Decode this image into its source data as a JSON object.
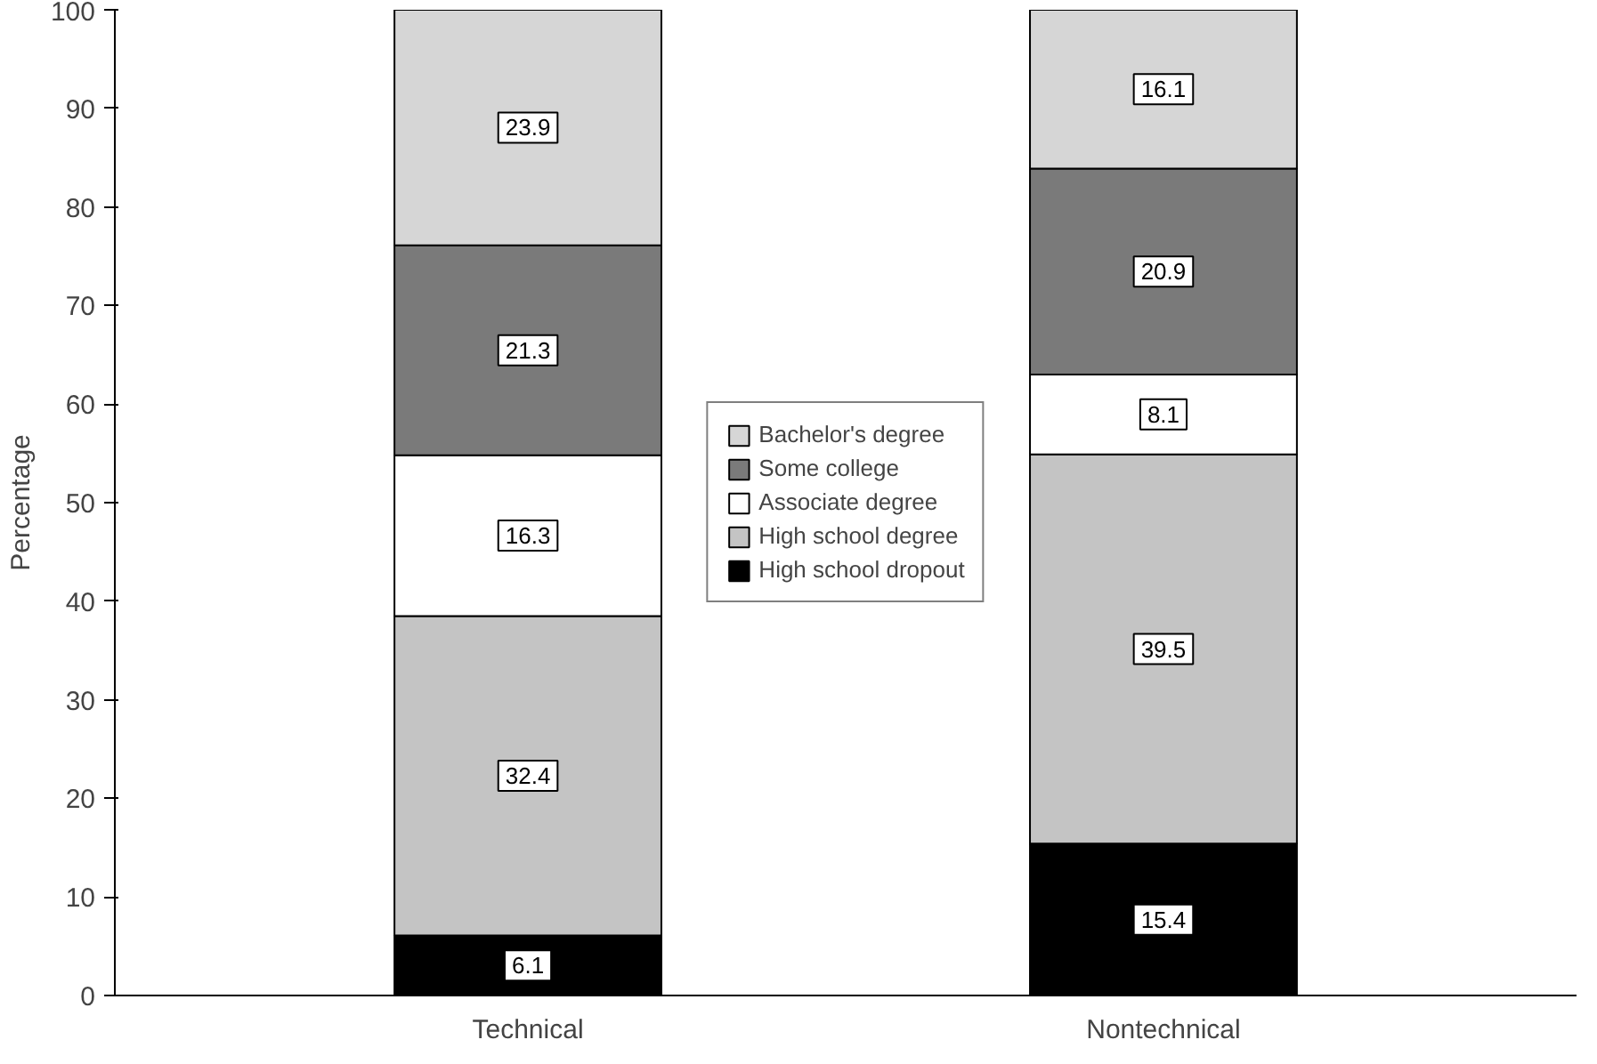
{
  "chart_data": {
    "type": "bar",
    "stacked": true,
    "ylabel": "Percentage",
    "categories": [
      "Technical",
      "Nontechnical"
    ],
    "series": [
      {
        "name": "High school dropout",
        "color": "#000000",
        "values": [
          6.1,
          15.4
        ]
      },
      {
        "name": "High school degree",
        "color": "#c4c4c4",
        "values": [
          32.4,
          39.5
        ]
      },
      {
        "name": "Associate degree",
        "color": "#ffffff",
        "values": [
          16.3,
          8.1
        ]
      },
      {
        "name": "Some college",
        "color": "#7a7a7a",
        "values": [
          21.3,
          20.9
        ]
      },
      {
        "name": "Bachelor's degree",
        "color": "#d6d6d6",
        "values": [
          23.9,
          16.1
        ]
      }
    ],
    "ylim": [
      0,
      100
    ],
    "yticks": [
      0,
      10,
      20,
      30,
      40,
      50,
      60,
      70,
      80,
      90,
      100
    ],
    "grid": false,
    "legend": "center",
    "data_labels": true
  }
}
